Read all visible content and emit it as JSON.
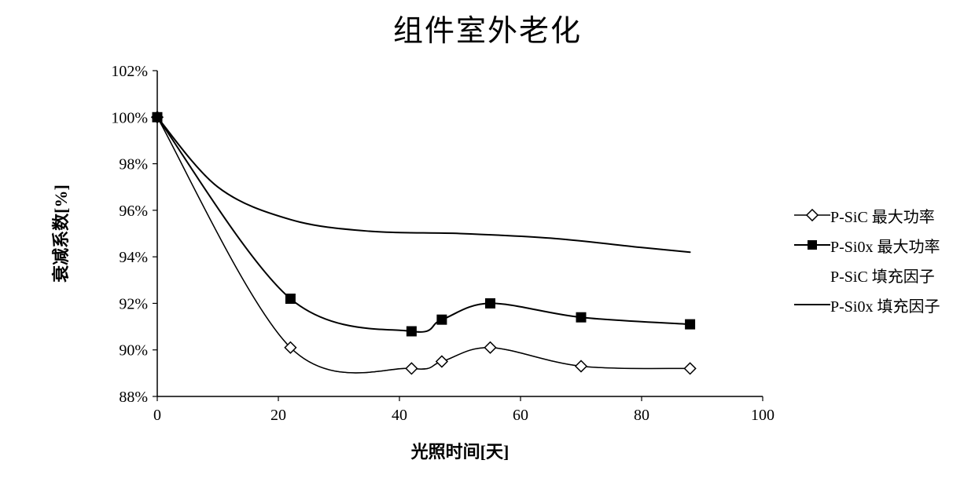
{
  "chart": {
    "type": "line",
    "title": "组件室外老化",
    "title_fontsize": 38,
    "xlabel": "光照时间[天]",
    "ylabel": "衰减系数[%]",
    "label_fontsize": 22,
    "tick_fontsize": 20,
    "background_color": "#ffffff",
    "axis_color": "#000000",
    "tick_color": "#000000",
    "xlim": [
      0,
      100
    ],
    "ylim": [
      88,
      102
    ],
    "xticks": [
      0,
      20,
      40,
      60,
      80,
      100
    ],
    "yticks": [
      88,
      90,
      92,
      94,
      96,
      98,
      100,
      102
    ],
    "ytick_suffix": "%",
    "grid": false,
    "tick_len": 6,
    "line_width": 2,
    "series": [
      {
        "id": "p_sic_pmax",
        "label": "P-SiC  最大功率",
        "color": "#000000",
        "line_width": 1.5,
        "marker": "diamond-open",
        "marker_size": 10,
        "marker_fill": "#ffffff",
        "marker_stroke": "#000000",
        "x": [
          0,
          22,
          42,
          47,
          55,
          70,
          88
        ],
        "y": [
          100,
          90.1,
          89.2,
          89.5,
          90.1,
          89.3,
          89.2
        ]
      },
      {
        "id": "p_siox_pmax",
        "label": "P-Si0x 最大功率",
        "color": "#000000",
        "line_width": 2,
        "marker": "square-filled",
        "marker_size": 12,
        "marker_fill": "#000000",
        "marker_stroke": "#000000",
        "x": [
          0,
          22,
          42,
          47,
          55,
          70,
          88
        ],
        "y": [
          100,
          92.2,
          90.8,
          91.3,
          92.0,
          91.4,
          91.1
        ]
      },
      {
        "id": "p_sic_ff",
        "label": "P-SiC  填充因子",
        "color": "#000000",
        "line_width": 1.2,
        "marker": "none",
        "x": [
          0,
          22,
          42,
          47,
          55,
          70,
          88
        ],
        "y": [
          100,
          90.1,
          89.2,
          89.5,
          90.1,
          89.3,
          89.2
        ]
      },
      {
        "id": "p_siox_ff",
        "label": "P-Si0x 填充因子",
        "color": "#000000",
        "line_width": 2,
        "marker": "none",
        "x": [
          0,
          10,
          22,
          35,
          50,
          65,
          80,
          88
        ],
        "y": [
          100,
          97.0,
          95.6,
          95.1,
          95.0,
          94.8,
          94.4,
          94.2
        ]
      }
    ],
    "legend": {
      "position": "right",
      "fontsize": 20
    }
  }
}
